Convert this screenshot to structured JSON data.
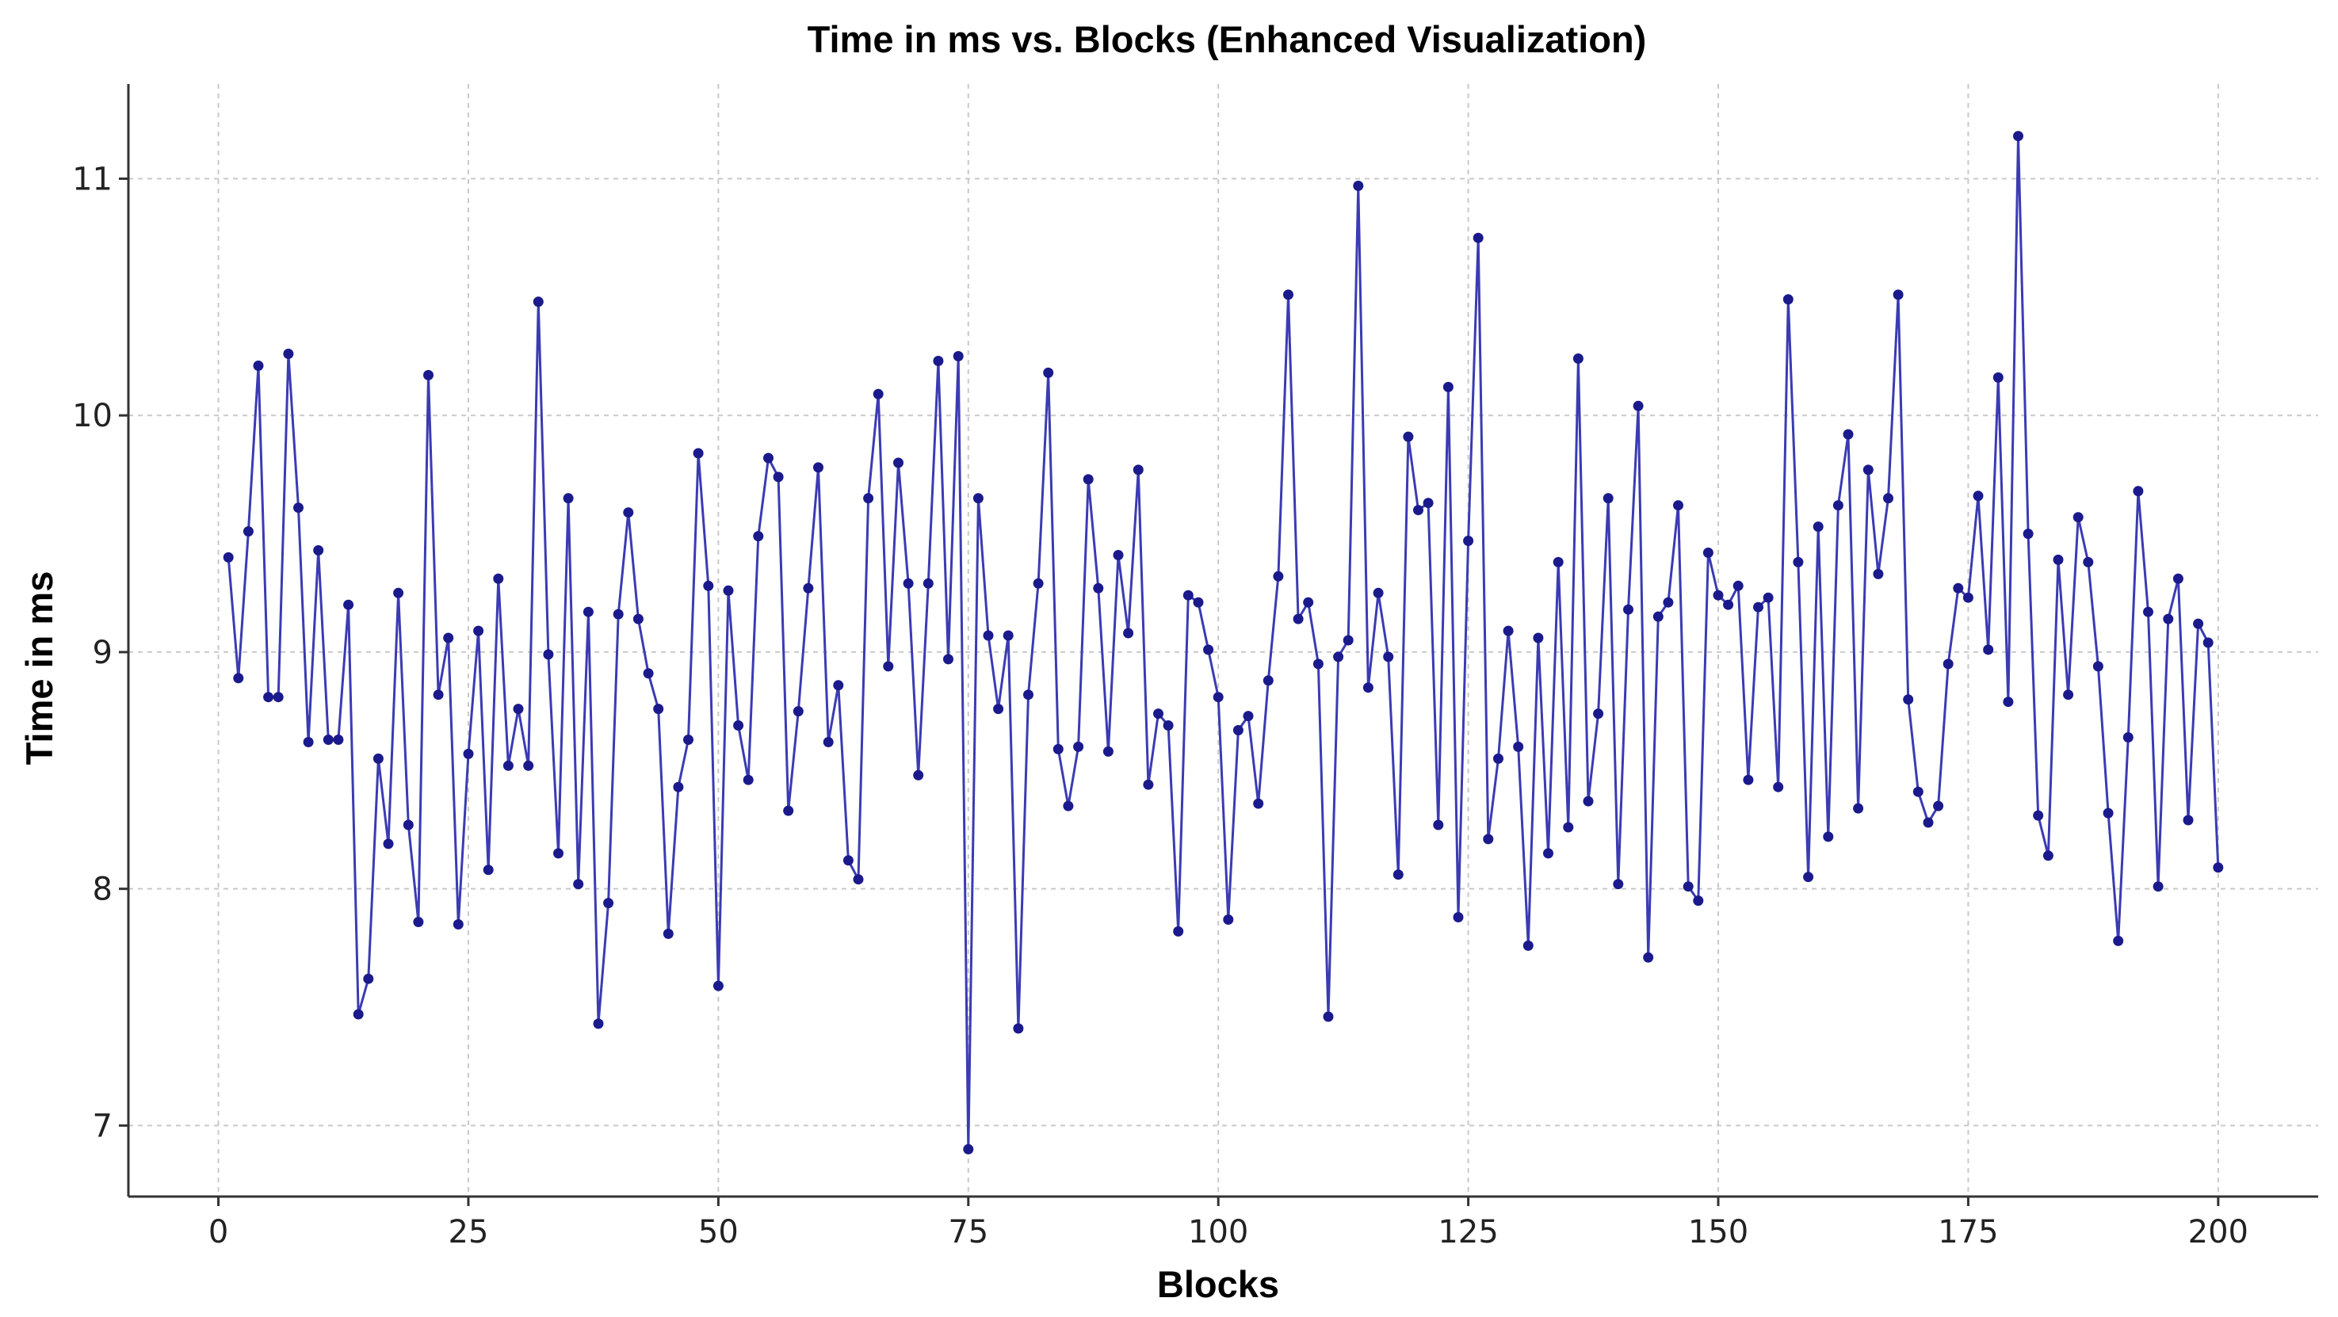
{
  "chart_data": {
    "type": "line",
    "title": "Time in ms vs. Blocks (Enhanced Visualization)",
    "xlabel": "Blocks",
    "ylabel": "Time in ms",
    "xlim": [
      -9,
      210
    ],
    "ylim": [
      6.7,
      11.4
    ],
    "xticks": [
      0,
      25,
      50,
      75,
      100,
      125,
      150,
      175,
      200
    ],
    "yticks": [
      7,
      8,
      9,
      10,
      11
    ],
    "grid": true,
    "legend": "none",
    "line_color": "#3b3bb3",
    "marker_color": "#1a1a8c",
    "series": [
      {
        "x": [
          1,
          2,
          3,
          4,
          5,
          6,
          7,
          8,
          9,
          10,
          11,
          12,
          13,
          14,
          15,
          16,
          17,
          18,
          19,
          20,
          21,
          22,
          23,
          24,
          25,
          26,
          27,
          28,
          29,
          30,
          31,
          32,
          33,
          34,
          35,
          36,
          37,
          38,
          39,
          40,
          41,
          42,
          43,
          44,
          45,
          46,
          47,
          48,
          49,
          50,
          51,
          52,
          53,
          54,
          55,
          56,
          57,
          58,
          59,
          60,
          61,
          62,
          63,
          64,
          65,
          66,
          67,
          68,
          69,
          70,
          71,
          72,
          73,
          74,
          75,
          76,
          77,
          78,
          79,
          80,
          81,
          82,
          83,
          84,
          85,
          86,
          87,
          88,
          89,
          90,
          91,
          92,
          93,
          94,
          95,
          96,
          97,
          98,
          99,
          100,
          101,
          102,
          103,
          104,
          105,
          106,
          107,
          108,
          109,
          110,
          111,
          112,
          113,
          114,
          115,
          116,
          117,
          118,
          119,
          120,
          121,
          122,
          123,
          124,
          125,
          126,
          127,
          128,
          129,
          130,
          131,
          132,
          133,
          134,
          135,
          136,
          137,
          138,
          139,
          140,
          141,
          142,
          143,
          144,
          145,
          146,
          147,
          148,
          149,
          150,
          151,
          152,
          153,
          154,
          155,
          156,
          157,
          158,
          159,
          160,
          161,
          162,
          163,
          164,
          165,
          166,
          167,
          168,
          169,
          170,
          171,
          172,
          173,
          174,
          175,
          176,
          177,
          178,
          179,
          180,
          181,
          182,
          183,
          184,
          185,
          186,
          187,
          188,
          189,
          190,
          191,
          192,
          193,
          194,
          195,
          196,
          197,
          198,
          199,
          200
        ],
        "values": [
          9.4,
          8.89,
          9.51,
          10.21,
          8.81,
          8.81,
          10.26,
          9.61,
          8.62,
          9.43,
          8.63,
          8.63,
          9.2,
          7.47,
          7.62,
          8.55,
          8.19,
          9.25,
          8.27,
          7.86,
          10.17,
          8.82,
          9.06,
          7.85,
          8.57,
          9.09,
          8.08,
          9.31,
          8.52,
          8.76,
          8.52,
          10.48,
          8.99,
          8.15,
          9.65,
          8.02,
          9.17,
          7.43,
          7.94,
          9.16,
          9.59,
          9.14,
          8.91,
          8.76,
          7.81,
          8.43,
          8.63,
          9.84,
          9.28,
          7.59,
          9.26,
          8.69,
          8.46,
          9.49,
          9.82,
          9.74,
          8.33,
          8.75,
          9.27,
          9.78,
          8.62,
          8.86,
          8.12,
          8.04,
          9.65,
          10.09,
          8.94,
          9.8,
          9.29,
          8.48,
          9.29,
          10.23,
          8.97,
          10.25,
          6.9,
          9.65,
          9.07,
          8.76,
          9.07,
          7.41,
          8.82,
          9.29,
          10.18,
          8.59,
          8.35,
          8.6,
          9.73,
          9.27,
          8.58,
          9.41,
          9.08,
          9.77,
          8.44,
          8.74,
          8.69,
          7.82,
          9.24,
          9.21,
          9.01,
          8.81,
          7.87,
          8.67,
          8.73,
          8.36,
          8.88,
          9.32,
          10.51,
          9.14,
          9.21,
          8.95,
          7.46,
          8.98,
          9.05,
          10.97,
          8.85,
          9.25,
          8.98,
          8.06,
          9.91,
          9.6,
          9.63,
          8.27,
          10.12,
          7.88,
          9.47,
          10.75,
          8.21,
          8.55,
          9.09,
          8.6,
          7.76,
          9.06,
          8.15,
          9.38,
          8.26,
          10.24,
          8.37,
          8.74,
          9.65,
          8.02,
          9.18,
          10.04,
          7.71,
          9.15,
          9.21,
          9.62,
          8.01,
          7.95,
          9.42,
          9.24,
          9.2,
          9.28,
          8.46,
          9.19,
          9.23,
          8.43,
          10.49,
          9.38,
          8.05,
          9.53,
          8.22,
          9.62,
          9.92,
          8.34,
          9.77,
          9.33,
          9.65,
          10.51,
          8.8,
          8.41,
          8.28,
          8.35,
          8.95,
          9.27,
          9.23,
          9.66,
          9.01,
          10.16,
          8.79,
          11.18,
          9.5,
          8.31,
          8.14,
          9.39,
          8.82,
          9.57,
          9.38,
          8.94,
          8.32,
          7.78,
          8.64,
          9.68,
          9.17,
          8.01,
          9.14,
          9.31,
          8.29,
          9.12,
          9.04,
          8.09
        ]
      }
    ]
  }
}
